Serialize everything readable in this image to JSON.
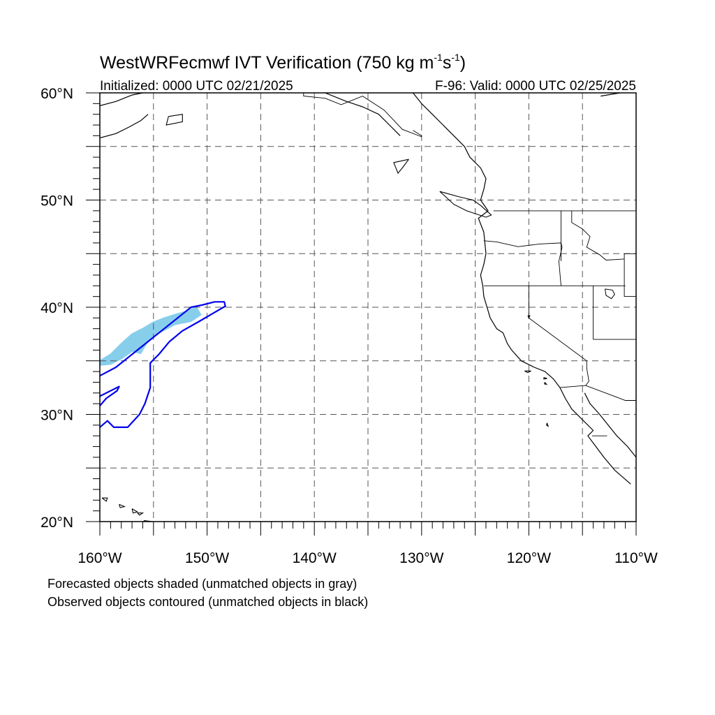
{
  "title": {
    "main": "WestWRFecmwf IVT Verification (750 kg m",
    "exp1": "-1",
    "mid": "s",
    "exp2": "-1",
    "close": ")"
  },
  "subtitle_left": "Initialized: 0000 UTC 02/21/2025",
  "subtitle_right": "F-96: Valid: 0000 UTC 02/25/2025",
  "map": {
    "lon_range": [
      -160,
      -110
    ],
    "lat_range": [
      20,
      60
    ],
    "lon_ticks": [
      {
        "value": -160,
        "label": "160°W"
      },
      {
        "value": -150,
        "label": "150°W"
      },
      {
        "value": -140,
        "label": "140°W"
      },
      {
        "value": -130,
        "label": "130°W"
      },
      {
        "value": -120,
        "label": "120°W"
      },
      {
        "value": -110,
        "label": "110°W"
      }
    ],
    "lat_ticks": [
      {
        "value": 20,
        "label": "20°N"
      },
      {
        "value": 30,
        "label": "30°N"
      },
      {
        "value": 40,
        "label": "40°N"
      },
      {
        "value": 50,
        "label": "50°N"
      },
      {
        "value": 60,
        "label": "60°N"
      }
    ],
    "grid_lon_step": 5,
    "grid_lat_step": 5,
    "grid_style": "dashed",
    "forecast_color": "#87ceeb",
    "observed_color": "#0000ee",
    "coast_color": "#000000",
    "forecast_object": [
      [
        -160,
        35.0
      ],
      [
        -159,
        35.6
      ],
      [
        -158,
        36.6
      ],
      [
        -157,
        37.5
      ],
      [
        -156,
        38.0
      ],
      [
        -155,
        38.6
      ],
      [
        -154,
        39.0
      ],
      [
        -153,
        39.3
      ],
      [
        -152,
        39.6
      ],
      [
        -151,
        40.0
      ],
      [
        -150.6,
        39.3
      ],
      [
        -151.5,
        38.7
      ],
      [
        -153,
        38.4
      ],
      [
        -154.5,
        37.6
      ],
      [
        -155.5,
        36.9
      ],
      [
        -156.2,
        35.7
      ],
      [
        -157,
        35.9
      ],
      [
        -158,
        35.2
      ],
      [
        -159,
        34.7
      ],
      [
        -160,
        34.6
      ]
    ],
    "observed_object": [
      [
        -160,
        33.6
      ],
      [
        -158.5,
        34.4
      ],
      [
        -157,
        35.6
      ],
      [
        -155.5,
        36.8
      ],
      [
        -154,
        38.0
      ],
      [
        -152.5,
        39.2
      ],
      [
        -151.5,
        40.0
      ],
      [
        -150.5,
        40.2
      ],
      [
        -149.3,
        40.5
      ],
      [
        -148.4,
        40.5
      ],
      [
        -148.3,
        40.1
      ],
      [
        -149.5,
        39.4
      ],
      [
        -150.7,
        38.7
      ],
      [
        -152.3,
        37.8
      ],
      [
        -153.5,
        36.8
      ],
      [
        -154.5,
        35.6
      ],
      [
        -155.3,
        34.8
      ],
      [
        -155.3,
        32.5
      ],
      [
        -155.8,
        31.0
      ],
      [
        -156.3,
        30.0
      ],
      [
        -157.4,
        28.8
      ],
      [
        -158.7,
        28.8
      ],
      [
        -159.3,
        29.4
      ],
      [
        -160,
        28.8
      ]
    ],
    "observed_arm": [
      [
        -160,
        31.7
      ],
      [
        -158.8,
        32.3
      ],
      [
        -158.2,
        32.6
      ],
      [
        -158.4,
        32.2
      ],
      [
        -159.4,
        31.5
      ],
      [
        -160,
        30.8
      ]
    ],
    "coast_lines": [
      [
        [
          -130.8,
          60
        ],
        [
          -130,
          59
        ],
        [
          -129,
          58
        ],
        [
          -128,
          57
        ],
        [
          -127,
          56
        ],
        [
          -126,
          55
        ],
        [
          -125.5,
          54
        ],
        [
          -124.5,
          53
        ],
        [
          -124,
          52
        ],
        [
          -124.2,
          51
        ],
        [
          -124.5,
          50
        ],
        [
          -123.8,
          49
        ],
        [
          -124.7,
          48.3
        ],
        [
          -124.2,
          47
        ],
        [
          -124.1,
          46
        ],
        [
          -124,
          45
        ],
        [
          -124.2,
          44
        ],
        [
          -124.5,
          43
        ],
        [
          -124.3,
          42
        ],
        [
          -124.2,
          41
        ],
        [
          -123.9,
          40
        ],
        [
          -123.6,
          39
        ],
        [
          -123,
          38
        ],
        [
          -122.4,
          37.6
        ],
        [
          -122,
          36.6
        ],
        [
          -121.6,
          36
        ],
        [
          -120.7,
          35
        ],
        [
          -119.5,
          34.4
        ],
        [
          -118.5,
          34
        ],
        [
          -117.7,
          33.3
        ],
        [
          -117.1,
          32.5
        ],
        [
          -116.6,
          31.5
        ],
        [
          -116,
          30.5
        ],
        [
          -115,
          29.5
        ],
        [
          -114,
          28.5
        ],
        [
          -114.5,
          28
        ],
        [
          -113,
          26
        ],
        [
          -112,
          24.8
        ],
        [
          -110.5,
          23.5
        ]
      ],
      [
        [
          -114.8,
          32
        ],
        [
          -114.3,
          31
        ],
        [
          -113.4,
          30
        ],
        [
          -112.6,
          29
        ],
        [
          -111.8,
          28
        ],
        [
          -110.8,
          27
        ],
        [
          -110,
          26
        ]
      ],
      [
        [
          -139,
          60
        ],
        [
          -137,
          59.2
        ],
        [
          -135.5,
          58.7
        ],
        [
          -134,
          58
        ],
        [
          -133,
          57
        ],
        [
          -132,
          56
        ]
      ],
      [
        [
          -160,
          58.8
        ],
        [
          -158.5,
          59.2
        ],
        [
          -157,
          59.8
        ],
        [
          -156,
          60
        ]
      ],
      [
        [
          -160,
          55.8
        ],
        [
          -158.5,
          56.2
        ],
        [
          -157.3,
          56.8
        ],
        [
          -156.2,
          57.4
        ],
        [
          -155.5,
          58
        ]
      ],
      [
        [
          -113.3,
          59.7
        ],
        [
          -111.5,
          60
        ]
      ]
    ],
    "island_lines": [
      [
        [
          -131.2,
          53.8
        ],
        [
          -131.8,
          53
        ],
        [
          -132.2,
          52.5
        ],
        [
          -132.6,
          53.5
        ],
        [
          -131.2,
          53.8
        ]
      ],
      [
        [
          -125.2,
          50
        ],
        [
          -126.5,
          50.3
        ],
        [
          -128.3,
          50.8
        ],
        [
          -127,
          49.6
        ],
        [
          -125.8,
          49
        ],
        [
          -124,
          48.4
        ],
        [
          -123.5,
          48.6
        ],
        [
          -124.5,
          49.5
        ],
        [
          -125.2,
          50
        ]
      ],
      [
        [
          -153.6,
          57.8
        ],
        [
          -152.3,
          58
        ],
        [
          -152.3,
          57.3
        ],
        [
          -153.8,
          57
        ],
        [
          -153.6,
          57.8
        ]
      ],
      [
        [
          -159.8,
          22.2
        ],
        [
          -159.3,
          22.2
        ],
        [
          -159.4,
          21.9
        ],
        [
          -159.8,
          22.2
        ]
      ],
      [
        [
          -158.2,
          21.6
        ],
        [
          -157.7,
          21.4
        ],
        [
          -158.1,
          21.3
        ],
        [
          -158.2,
          21.6
        ]
      ],
      [
        [
          -157,
          21.2
        ],
        [
          -156.5,
          20.9
        ],
        [
          -156.9,
          20.8
        ],
        [
          -157,
          21.2
        ]
      ],
      [
        [
          -156.5,
          20.8
        ],
        [
          -156,
          20.8
        ],
        [
          -156.3,
          20.6
        ],
        [
          -156.5,
          20.8
        ]
      ],
      [
        [
          -155.9,
          20.1
        ],
        [
          -155.1,
          20
        ],
        [
          -154.9,
          19.6
        ],
        [
          -155.6,
          19.5
        ],
        [
          -155.9,
          20.1
        ]
      ],
      [
        [
          -120.4,
          34.05
        ],
        [
          -119.8,
          34.05
        ],
        [
          -120.1,
          33.9
        ],
        [
          -120.4,
          34.05
        ]
      ],
      [
        [
          -118.6,
          33.45
        ],
        [
          -118.3,
          33.35
        ],
        [
          -118.6,
          33.3
        ],
        [
          -118.6,
          33.45
        ]
      ],
      [
        [
          -118.5,
          33.0
        ],
        [
          -118.35,
          32.8
        ],
        [
          -118.55,
          32.85
        ],
        [
          -118.5,
          33.0
        ]
      ],
      [
        [
          -118.3,
          29.2
        ],
        [
          -118.2,
          28.9
        ],
        [
          -118.35,
          29.0
        ],
        [
          -118.3,
          29.2
        ]
      ]
    ],
    "border_lines": [
      [
        [
          -123.3,
          49
        ],
        [
          -110,
          49
        ]
      ],
      [
        [
          -141,
          60
        ],
        [
          -141,
          59.7
        ],
        [
          -139,
          59.5
        ],
        [
          -137.5,
          58.9
        ],
        [
          -135.5,
          59.7
        ],
        [
          -133.5,
          58.4
        ],
        [
          -131.8,
          56.6
        ],
        [
          -130,
          55.9
        ],
        [
          -130,
          56
        ],
        [
          -130.8,
          56.5
        ]
      ],
      [
        [
          -124.2,
          46.2
        ],
        [
          -123,
          46.1
        ],
        [
          -121,
          45.65
        ],
        [
          -119,
          45.9
        ],
        [
          -117,
          46
        ],
        [
          -116.9,
          45.6
        ],
        [
          -117.2,
          44.3
        ],
        [
          -117,
          42
        ]
      ],
      [
        [
          -124.2,
          42
        ],
        [
          -111,
          42
        ]
      ],
      [
        [
          -117,
          49
        ],
        [
          -117,
          44.3
        ]
      ],
      [
        [
          -116,
          49
        ],
        [
          -116,
          47.9
        ],
        [
          -115,
          47.3
        ],
        [
          -114.3,
          46.6
        ],
        [
          -114.6,
          45.6
        ],
        [
          -113.4,
          44.9
        ],
        [
          -112.8,
          44.4
        ],
        [
          -111.1,
          44.5
        ]
      ],
      [
        [
          -111.1,
          45
        ],
        [
          -110,
          45
        ]
      ],
      [
        [
          -111.1,
          45
        ],
        [
          -111.1,
          41
        ],
        [
          -110,
          41
        ]
      ],
      [
        [
          -114,
          42
        ],
        [
          -114,
          37
        ]
      ],
      [
        [
          -114,
          37
        ],
        [
          -110,
          37
        ]
      ],
      [
        [
          -120,
          42
        ],
        [
          -120,
          39
        ],
        [
          -114.6,
          35
        ],
        [
          -114.6,
          34.3
        ],
        [
          -114.4,
          33.1
        ],
        [
          -114.7,
          32.7
        ]
      ],
      [
        [
          -117.1,
          32.5
        ],
        [
          -114.7,
          32.7
        ],
        [
          -111,
          31.3
        ],
        [
          -110,
          31.3
        ]
      ],
      [
        [
          -114.1,
          28
        ],
        [
          -112.7,
          28
        ]
      ]
    ],
    "lakes": [
      [
        [
          -112.9,
          41.7
        ],
        [
          -112.2,
          41.6
        ],
        [
          -112.0,
          41.2
        ],
        [
          -112.3,
          40.8
        ],
        [
          -112.8,
          41.1
        ],
        [
          -112.9,
          41.7
        ]
      ],
      [
        [
          -120.1,
          39.2
        ],
        [
          -119.9,
          39.2
        ],
        [
          -120.0,
          39.0
        ],
        [
          -120.1,
          39.2
        ]
      ]
    ]
  },
  "caption": {
    "line1": "Forecasted objects shaded (unmatched objects in gray)",
    "line2": "Observed objects contoured (unmatched objects in black)"
  }
}
